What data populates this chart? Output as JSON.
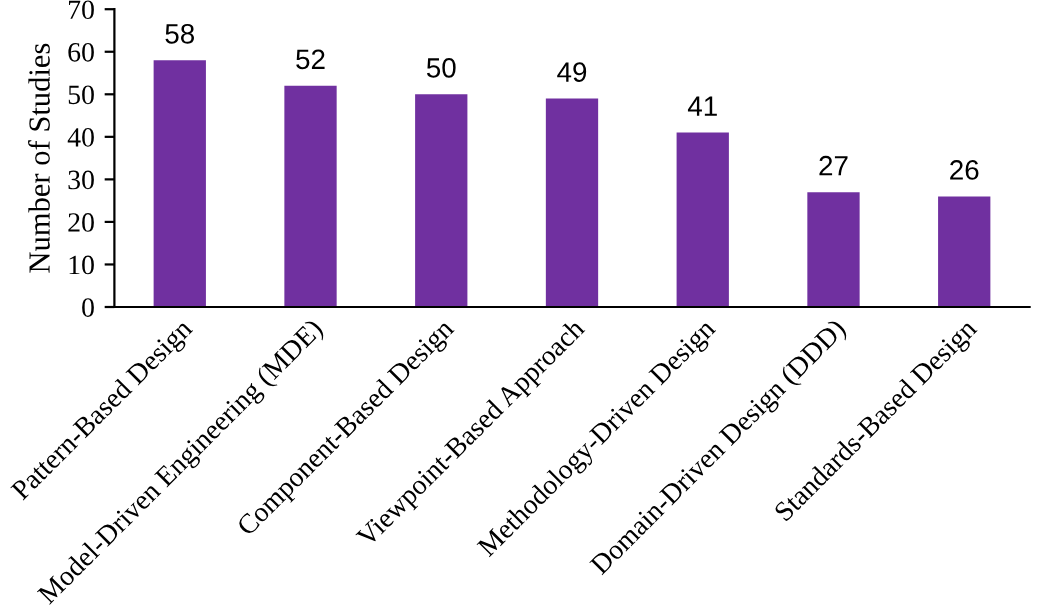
{
  "chart_data": {
    "type": "bar",
    "ylabel": "Number of Studies",
    "categories": [
      "Pattern-Based Design",
      "Model-Driven Engineering (MDE)",
      "Component-Based Design",
      "Viewpoint-Based Approach",
      "Methodology-Driven Design",
      "Domain-Driven Design (DDD)",
      "Standards-Based Design"
    ],
    "values": [
      58,
      52,
      50,
      49,
      41,
      27,
      26
    ],
    "color": "#7030a0",
    "ylim": [
      0,
      70
    ],
    "yticks": [
      0,
      10,
      20,
      30,
      40,
      50,
      60,
      70
    ],
    "grid": false,
    "data_labels": true
  }
}
